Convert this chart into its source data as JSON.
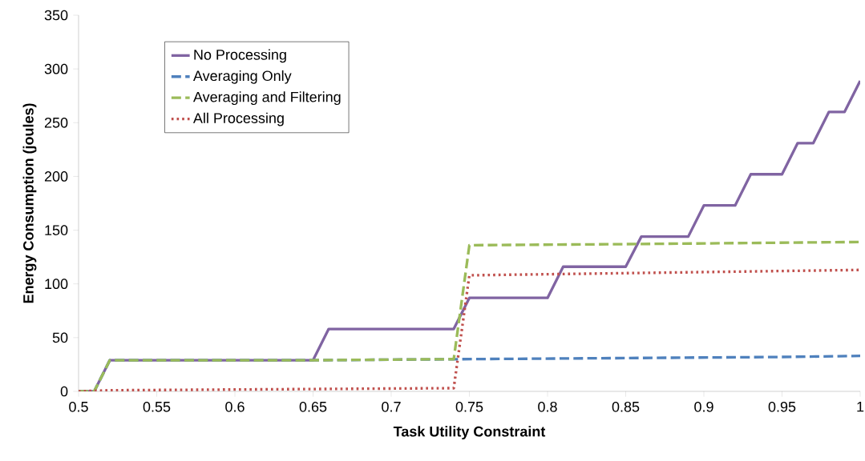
{
  "chart_data": {
    "type": "line",
    "xlabel": "Task Utility Constraint",
    "ylabel": "Energy  Consumption (joules)",
    "xlim": [
      0.5,
      1
    ],
    "ylim": [
      0,
      350
    ],
    "xticks": [
      0.5,
      0.55,
      0.6,
      0.65,
      0.7,
      0.75,
      0.8,
      0.85,
      0.9,
      0.95,
      1
    ],
    "yticks": [
      0,
      50,
      100,
      150,
      200,
      250,
      300,
      350
    ],
    "grid": false,
    "legend": "top left",
    "marker": "none",
    "series": [
      {
        "name": "No Processing",
        "color": "#8064a2",
        "line_style": "solid",
        "x": [
          0.5,
          0.51,
          0.52,
          0.65,
          0.66,
          0.74,
          0.75,
          0.8,
          0.81,
          0.85,
          0.86,
          0.89,
          0.9,
          0.92,
          0.93,
          0.95,
          0.96,
          0.97,
          0.98,
          0.99,
          1
        ],
        "values": [
          0,
          0,
          29,
          29,
          58,
          58,
          87,
          87,
          116,
          116,
          144,
          144,
          173,
          173,
          202,
          202,
          231,
          231,
          260,
          260,
          289
        ]
      },
      {
        "name": "Averaging Only",
        "color": "#4f81bd",
        "line_style": "dashed",
        "x": [
          0.5,
          0.51,
          0.52,
          0.65,
          0.75,
          0.85,
          0.95,
          1
        ],
        "values": [
          0,
          0,
          29,
          29,
          30,
          31,
          32,
          33
        ]
      },
      {
        "name": "Averaging and Filtering",
        "color": "#9bbb59",
        "line_style": "dashed",
        "x": [
          0.5,
          0.51,
          0.52,
          0.65,
          0.74,
          0.75,
          0.85,
          1
        ],
        "values": [
          0,
          0,
          29,
          29,
          30,
          136,
          137,
          139
        ]
      },
      {
        "name": "All Processing",
        "color": "#c0504d",
        "line_style": "dotted",
        "x": [
          0.5,
          0.52,
          0.74,
          0.75,
          0.85,
          1
        ],
        "values": [
          0,
          1,
          3,
          108,
          110,
          113
        ]
      }
    ]
  }
}
